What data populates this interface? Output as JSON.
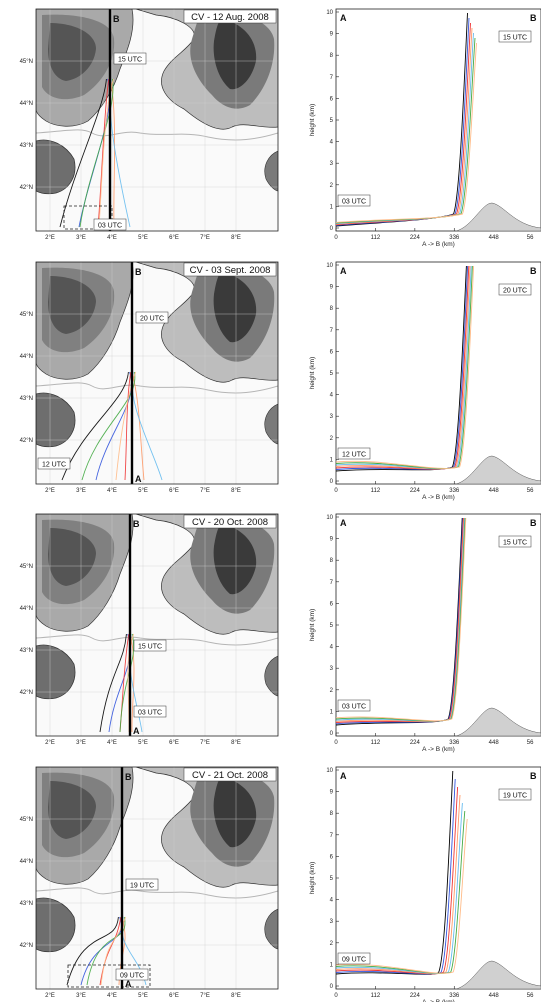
{
  "panels": [
    {
      "title": "CV - 12 Aug. 2008",
      "map_tag_top": "15 UTC",
      "map_tag_bottom": "03 UTC",
      "profile_tag_top": "15 UTC",
      "profile_tag_bottom": "03 UTC"
    },
    {
      "title": "CV - 03 Sept. 2008",
      "map_tag_top": "20 UTC",
      "map_tag_bottom": "12 UTC",
      "profile_tag_top": "20 UTC",
      "profile_tag_bottom": "12 UTC"
    },
    {
      "title": "CV - 20 Oct. 2008",
      "map_tag_top": "15 UTC",
      "map_tag_bottom": "03 UTC",
      "profile_tag_top": "15 UTC",
      "profile_tag_bottom": "03 UTC"
    },
    {
      "title": "CV - 21 Oct. 2008",
      "map_tag_top": "19 UTC",
      "map_tag_bottom": "09 UTC",
      "profile_tag_top": "19 UTC",
      "profile_tag_bottom": "09 UTC"
    }
  ],
  "map_axes": {
    "lat_ticks": [
      "45°N",
      "44°N",
      "43°N",
      "42°N"
    ],
    "lon_ticks": [
      "2°E",
      "3°E",
      "4°E",
      "5°E",
      "6°E",
      "7°E",
      "8°E"
    ],
    "point_a": "A",
    "point_b": "B"
  },
  "profile_axes": {
    "ylabel": "height (km)",
    "xlabel": "A -> B (km)",
    "y_ticks": [
      "0",
      "1",
      "2",
      "3",
      "4",
      "5",
      "6",
      "7",
      "8",
      "9",
      "10"
    ],
    "x_ticks": [
      "0",
      "112",
      "224",
      "336",
      "448",
      "56"
    ],
    "corner_a": "A",
    "corner_b": "B"
  },
  "colors": {
    "trajectory": [
      "#000000",
      "#3355dd",
      "#ee3333",
      "#ff9966",
      "#66bbee",
      "#44aa44",
      "#ffbb88"
    ],
    "cross_section": "#000000",
    "terrain_dark": "#333333",
    "terrain_light": "#cfcfcf"
  }
}
